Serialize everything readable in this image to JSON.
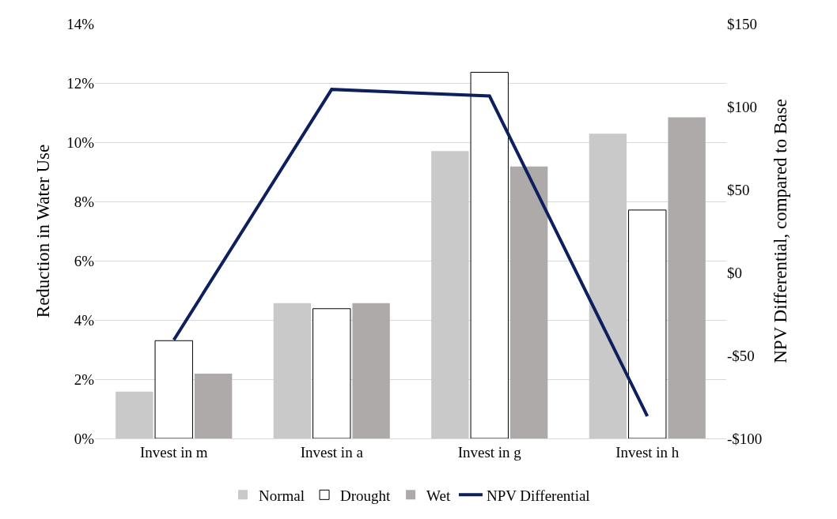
{
  "chart_data": {
    "type": "bar",
    "ylabel": "Reduction in Water Use",
    "y2label": "NPV Differential, compared to Base",
    "categories": [
      "Invest in m",
      "Invest in a",
      "Invest in g",
      "Invest in h"
    ],
    "series": [
      {
        "name": "Normal",
        "color": "#c9c9c9",
        "values": [
          1.58,
          4.57,
          9.7,
          10.29
        ]
      },
      {
        "name": "Drought",
        "color": "#ffffff",
        "values": [
          3.3,
          4.38,
          12.36,
          7.71
        ]
      },
      {
        "name": "Wet",
        "color": "#aeaaaa",
        "values": [
          2.19,
          4.57,
          9.18,
          10.84
        ]
      },
      {
        "name": "NPV Differential",
        "type": "line",
        "axis": "y2",
        "color": "#0d1f5c",
        "values": [
          -40.6,
          110.4,
          106.4,
          -86.6
        ]
      }
    ],
    "ylim": [
      0,
      14
    ],
    "yticks": [
      {
        "value": 0,
        "label": "0%"
      },
      {
        "value": 2,
        "label": "2%"
      },
      {
        "value": 4,
        "label": "4%"
      },
      {
        "value": 6,
        "label": "6%"
      },
      {
        "value": 8,
        "label": "8%"
      },
      {
        "value": 10,
        "label": "10%"
      },
      {
        "value": 12,
        "label": "12%"
      },
      {
        "value": 14,
        "label": "14%"
      }
    ],
    "y2lim": [
      -100,
      150
    ],
    "y2ticks": [
      {
        "value": -100,
        "label": "-$100"
      },
      {
        "value": -50,
        "label": "-$50"
      },
      {
        "value": 0,
        "label": "$0"
      },
      {
        "value": 50,
        "label": "$50"
      },
      {
        "value": 100,
        "label": "$100"
      },
      {
        "value": 150,
        "label": "$150"
      }
    ],
    "grid": "y",
    "legend": "bottom",
    "marker": "none",
    "line_style": "solid"
  }
}
